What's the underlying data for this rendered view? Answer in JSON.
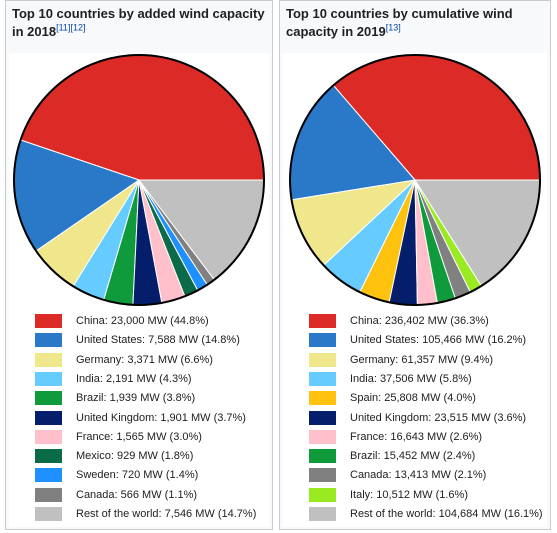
{
  "chart_data": [
    {
      "type": "pie",
      "title": "Top 10 countries by added wind capacity in 2018",
      "refs": [
        "[11]",
        "[12]"
      ],
      "unit": "MW",
      "slices": [
        {
          "label": "China: 23,000 MW (44.8%)",
          "value": 23000,
          "percent": 44.8,
          "color": "#dc2a27"
        },
        {
          "label": "United States: 7,588 MW (14.8%)",
          "value": 7588,
          "percent": 14.8,
          "color": "#2a78c8"
        },
        {
          "label": "Germany: 3,371 MW (6.6%)",
          "value": 3371,
          "percent": 6.6,
          "color": "#f0e68c"
        },
        {
          "label": "India: 2,191 MW (4.3%)",
          "value": 2191,
          "percent": 4.3,
          "color": "#66ccff"
        },
        {
          "label": "Brazil: 1,939 MW (3.8%)",
          "value": 1939,
          "percent": 3.8,
          "color": "#0f9b3c"
        },
        {
          "label": "United Kingdom: 1,901 MW (3.7%)",
          "value": 1901,
          "percent": 3.7,
          "color": "#041e6b"
        },
        {
          "label": "France: 1,565 MW (3.0%)",
          "value": 1565,
          "percent": 3.0,
          "color": "#ffc0cb"
        },
        {
          "label": "Mexico: 929 MW (1.8%)",
          "value": 929,
          "percent": 1.8,
          "color": "#0b6b48"
        },
        {
          "label": "Sweden: 720 MW (1.4%)",
          "value": 720,
          "percent": 1.4,
          "color": "#1e90ff"
        },
        {
          "label": "Canada: 566 MW (1.1%)",
          "value": 566,
          "percent": 1.1,
          "color": "#808080"
        },
        {
          "label": "Rest of the world: 7,546 MW (14.7%)",
          "value": 7546,
          "percent": 14.7,
          "color": "#c0c0c0"
        }
      ]
    },
    {
      "type": "pie",
      "title": "Top 10 countries by cumulative wind capacity in 2019",
      "refs": [
        "[13]"
      ],
      "unit": "MW",
      "slices": [
        {
          "label": "China: 236,402 MW (36.3%)",
          "value": 236402,
          "percent": 36.3,
          "color": "#dc2a27"
        },
        {
          "label": "United States: 105,466 MW (16.2%)",
          "value": 105466,
          "percent": 16.2,
          "color": "#2a78c8"
        },
        {
          "label": "Germany: 61,357 MW (9.4%)",
          "value": 61357,
          "percent": 9.4,
          "color": "#f0e68c"
        },
        {
          "label": "India: 37,506 MW (5.8%)",
          "value": 37506,
          "percent": 5.8,
          "color": "#66ccff"
        },
        {
          "label": "Spain: 25,808 MW (4.0%)",
          "value": 25808,
          "percent": 4.0,
          "color": "#ffc20e"
        },
        {
          "label": "United Kingdom: 23,515 MW (3.6%)",
          "value": 23515,
          "percent": 3.6,
          "color": "#041e6b"
        },
        {
          "label": "France: 16,643 MW (2.6%)",
          "value": 16643,
          "percent": 2.6,
          "color": "#ffc0cb"
        },
        {
          "label": "Brazil: 15,452 MW (2.4%)",
          "value": 15452,
          "percent": 2.4,
          "color": "#0f9b3c"
        },
        {
          "label": "Canada: 13,413 MW (2.1%)",
          "value": 13413,
          "percent": 2.1,
          "color": "#808080"
        },
        {
          "label": "Italy: 10,512 MW (1.6%)",
          "value": 10512,
          "percent": 1.6,
          "color": "#9aea22"
        },
        {
          "label": "Rest of the world: 104,684 MW (16.1%)",
          "value": 104684,
          "percent": 16.1,
          "color": "#c0c0c0"
        }
      ]
    }
  ]
}
